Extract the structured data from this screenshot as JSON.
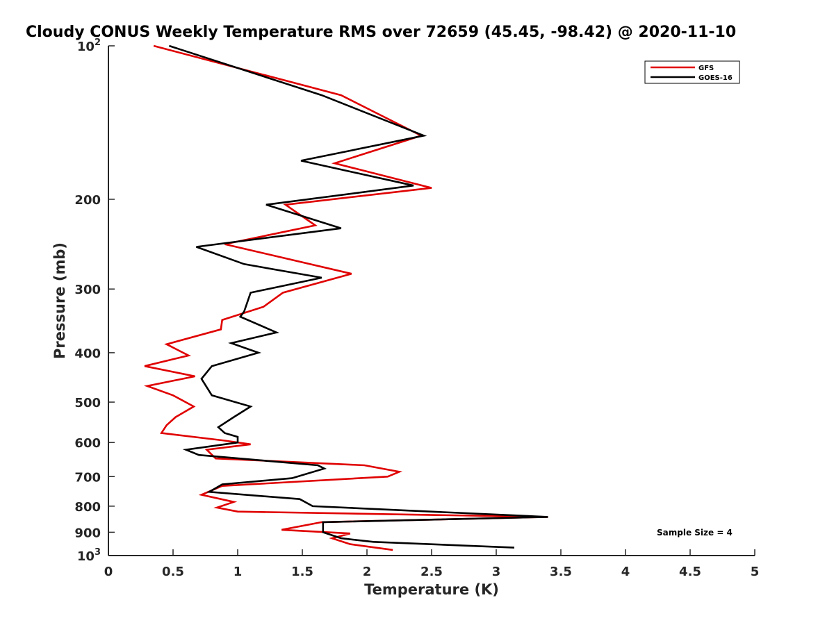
{
  "chart_data": {
    "type": "line",
    "title": "Cloudy CONUS Weekly Temperature RMS over 72659 (45.45, -98.42) @ 2020-11-10",
    "xlabel": "Temperature (K)",
    "ylabel": "Pressure (mb)",
    "xlim": [
      0,
      5
    ],
    "ylim": [
      100,
      1000
    ],
    "y_scale": "log",
    "y_reversed": true,
    "x_ticks": [
      "0",
      "0.5",
      "1",
      "1.5",
      "2",
      "2.5",
      "3",
      "3.5",
      "4",
      "4.5",
      "5"
    ],
    "y_ticks": [
      {
        "value": 100,
        "base": "10",
        "exp": "2"
      },
      {
        "value": 200,
        "label": "200"
      },
      {
        "value": 300,
        "label": "300"
      },
      {
        "value": 400,
        "label": "400"
      },
      {
        "value": 500,
        "label": "500"
      },
      {
        "value": 600,
        "label": "600"
      },
      {
        "value": 700,
        "label": "700"
      },
      {
        "value": 800,
        "label": "800"
      },
      {
        "value": 900,
        "label": "900"
      },
      {
        "value": 1000,
        "base": "10",
        "exp": "3"
      }
    ],
    "legend_position": "top-right",
    "grid": false,
    "annotation": "Sample Size = 4",
    "series": [
      {
        "name": "GFS",
        "color": "#e00000",
        "points": [
          [
            0.35,
            100
          ],
          [
            1.8,
            125
          ],
          [
            2.42,
            150
          ],
          [
            1.75,
            170
          ],
          [
            2.5,
            190
          ],
          [
            1.37,
            205
          ],
          [
            1.6,
            225
          ],
          [
            0.9,
            245
          ],
          [
            1.88,
            280
          ],
          [
            1.35,
            305
          ],
          [
            1.2,
            325
          ],
          [
            0.88,
            345
          ],
          [
            0.87,
            360
          ],
          [
            0.45,
            385
          ],
          [
            0.62,
            405
          ],
          [
            0.28,
            425
          ],
          [
            0.67,
            445
          ],
          [
            0.3,
            465
          ],
          [
            0.5,
            485
          ],
          [
            0.66,
            510
          ],
          [
            0.52,
            535
          ],
          [
            0.45,
            555
          ],
          [
            0.41,
            575
          ],
          [
            0.9,
            595
          ],
          [
            1.1,
            605
          ],
          [
            0.76,
            620
          ],
          [
            0.83,
            645
          ],
          [
            1.98,
            665
          ],
          [
            2.25,
            685
          ],
          [
            2.16,
            700
          ],
          [
            0.88,
            730
          ],
          [
            0.72,
            760
          ],
          [
            0.97,
            785
          ],
          [
            0.84,
            805
          ],
          [
            1.0,
            820
          ],
          [
            3.4,
            840
          ],
          [
            1.65,
            860
          ],
          [
            1.34,
            890
          ],
          [
            1.87,
            905
          ],
          [
            1.73,
            925
          ],
          [
            1.87,
            950
          ],
          [
            2.2,
            975
          ]
        ]
      },
      {
        "name": "GOES-16",
        "color": "#000000",
        "points": [
          [
            0.47,
            100
          ],
          [
            1.65,
            125
          ],
          [
            2.44,
            150
          ],
          [
            1.49,
            168
          ],
          [
            2.36,
            188
          ],
          [
            1.22,
            205
          ],
          [
            1.8,
            228
          ],
          [
            0.68,
            248
          ],
          [
            1.05,
            268
          ],
          [
            1.65,
            285
          ],
          [
            1.1,
            305
          ],
          [
            1.05,
            332
          ],
          [
            1.02,
            340
          ],
          [
            1.3,
            365
          ],
          [
            0.95,
            383
          ],
          [
            1.16,
            400
          ],
          [
            0.8,
            425
          ],
          [
            0.72,
            450
          ],
          [
            0.8,
            485
          ],
          [
            1.1,
            510
          ],
          [
            0.97,
            535
          ],
          [
            0.85,
            560
          ],
          [
            0.9,
            575
          ],
          [
            1.0,
            585
          ],
          [
            1.0,
            600
          ],
          [
            0.6,
            620
          ],
          [
            0.7,
            635
          ],
          [
            1.62,
            665
          ],
          [
            1.67,
            675
          ],
          [
            1.42,
            705
          ],
          [
            0.88,
            725
          ],
          [
            0.78,
            750
          ],
          [
            1.48,
            775
          ],
          [
            1.58,
            800
          ],
          [
            3.4,
            840
          ],
          [
            1.66,
            860
          ],
          [
            1.66,
            900
          ],
          [
            1.8,
            925
          ],
          [
            2.05,
            940
          ],
          [
            3.14,
            965
          ]
        ]
      }
    ]
  }
}
